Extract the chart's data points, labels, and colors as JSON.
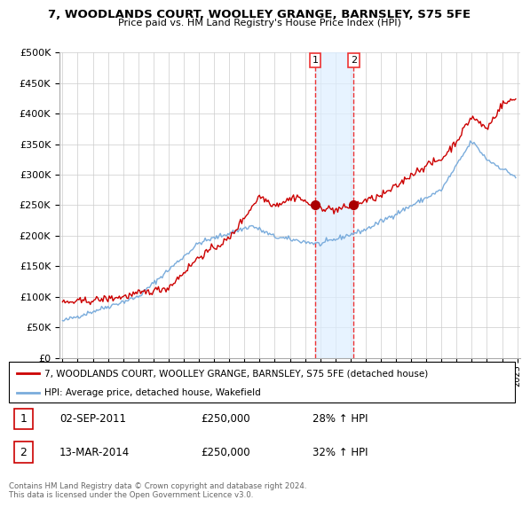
{
  "title": "7, WOODLANDS COURT, WOOLLEY GRANGE, BARNSLEY, S75 5FE",
  "subtitle": "Price paid vs. HM Land Registry's House Price Index (HPI)",
  "legend_label_red": "7, WOODLANDS COURT, WOOLLEY GRANGE, BARNSLEY, S75 5FE (detached house)",
  "legend_label_blue": "HPI: Average price, detached house, Wakefield",
  "footer": "Contains HM Land Registry data © Crown copyright and database right 2024.\nThis data is licensed under the Open Government Licence v3.0.",
  "purchase1_date": "02-SEP-2011",
  "purchase1_price": "£250,000",
  "purchase1_hpi": "28% ↑ HPI",
  "purchase2_date": "13-MAR-2014",
  "purchase2_price": "£250,000",
  "purchase2_hpi": "32% ↑ HPI",
  "hpi_color": "#7aacdc",
  "price_color": "#cc0000",
  "shade_color": "#ddeeff",
  "vline_color": "#ee3333",
  "dot_color": "#aa0000",
  "ylim": [
    0,
    500000
  ],
  "yticks": [
    0,
    50000,
    100000,
    150000,
    200000,
    250000,
    300000,
    350000,
    400000,
    450000,
    500000
  ],
  "purchase1_x": 2011.67,
  "purchase2_x": 2014.2,
  "purchase1_y": 250000,
  "purchase2_y": 250000,
  "xlim_left": 1994.8,
  "xlim_right": 2025.2
}
